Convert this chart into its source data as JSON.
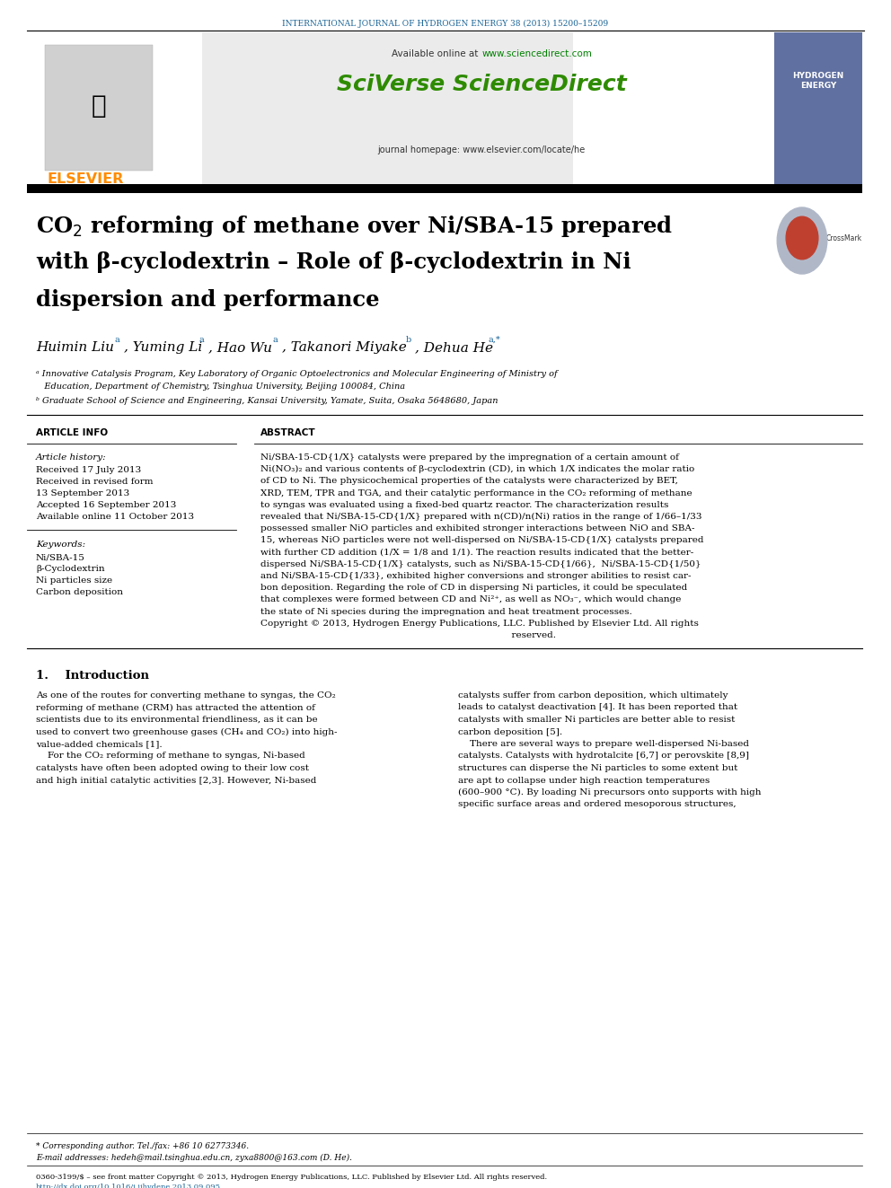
{
  "background_color": "#ffffff",
  "page_width": 9.92,
  "page_height": 13.23,
  "journal_header": "INTERNATIONAL JOURNAL OF HYDROGEN ENERGY 38 (2013) 15200–15209",
  "journal_header_color": "#1a6496",
  "available_online": "Available online at ",
  "sciencedirect_url": "www.sciencedirect.com",
  "sciencedirect_url_color": "#008000",
  "sciverse_text": "SciVerse ScienceDirect",
  "sciverse_color": "#2e8b00",
  "journal_homepage": "journal homepage: www.elsevier.com/locate/he",
  "journal_homepage_color": "#333333",
  "elsevier_text": "ELSEVIER",
  "elsevier_color": "#ff8c00",
  "title_color": "#000000",
  "article_info_header": "ARTICLE INFO",
  "abstract_header": "ABSTRACT",
  "article_history_label": "Article history:",
  "received1": "Received 17 July 2013",
  "received2": "Received in revised form",
  "received2b": "13 September 2013",
  "accepted": "Accepted 16 September 2013",
  "available": "Available online 11 October 2013",
  "keywords_label": "Keywords:",
  "kw1": "Ni/SBA-15",
  "kw2": "β-Cyclodextrin",
  "kw3": "Ni particles size",
  "kw4": "Carbon deposition",
  "intro_header": "1.    Introduction",
  "footer_note": "* Corresponding author. Tel./fax: +86 10 62773346.",
  "footer_email": "E-mail addresses: hedeh@mail.tsinghua.edu.cn, zyxa8800@163.com (D. He).",
  "footer_issn": "0360-3199/$ – see front matter Copyright © 2013, Hydrogen Energy Publications, LLC. Published by Elsevier Ltd. All rights reserved.",
  "footer_doi": "http://dx.doi.org/10.1016/j.ijhydene.2013.09.095",
  "footer_doi_color": "#1a6496",
  "separator_color": "#000000",
  "header_bg_color": "#e8e8e8"
}
